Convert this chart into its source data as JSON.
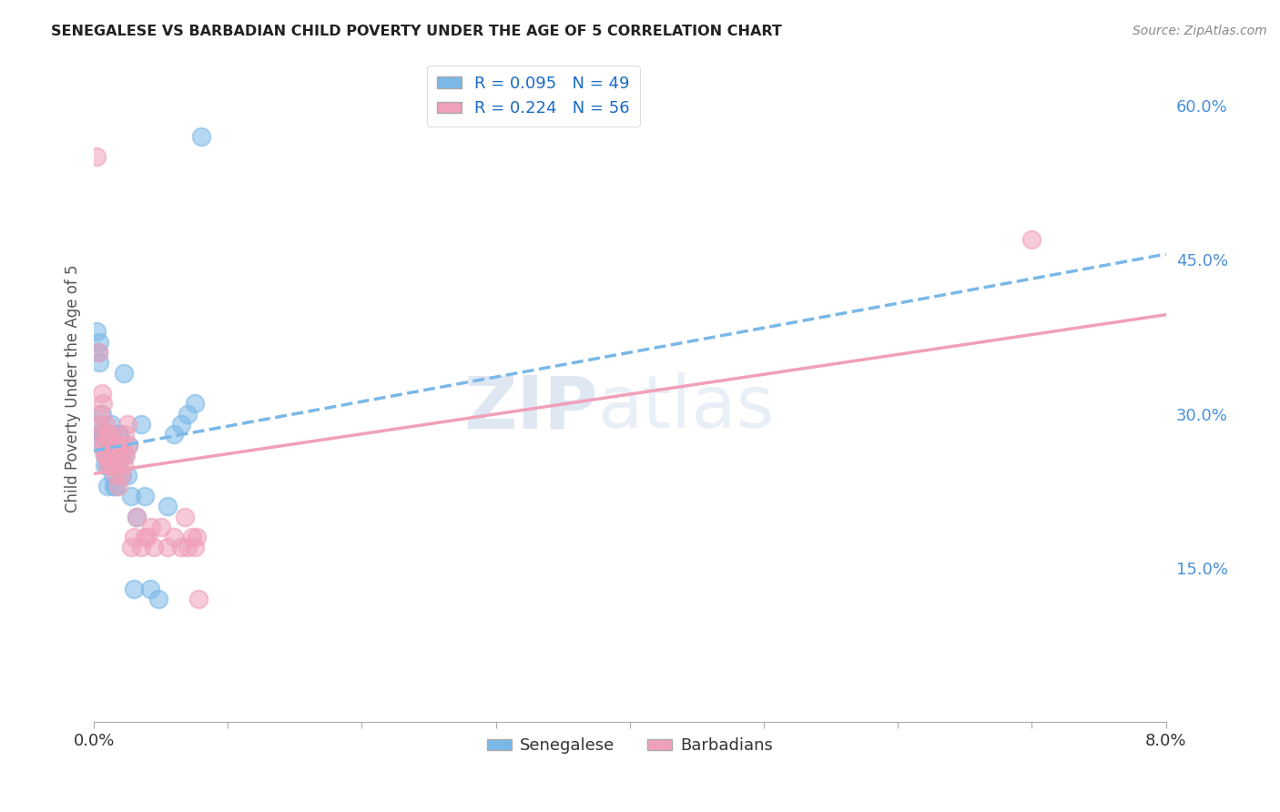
{
  "title": "SENEGALESE VS BARBADIAN CHILD POVERTY UNDER THE AGE OF 5 CORRELATION CHART",
  "source": "Source: ZipAtlas.com",
  "xlabel": "",
  "ylabel": "Child Poverty Under the Age of 5",
  "xlim": [
    0.0,
    0.08
  ],
  "ylim": [
    0.0,
    0.65
  ],
  "xtick_positions": [
    0.0,
    0.01,
    0.02,
    0.03,
    0.04,
    0.05,
    0.06,
    0.07,
    0.08
  ],
  "xticklabels": [
    "0.0%",
    "",
    "",
    "",
    "",
    "",
    "",
    "",
    "8.0%"
  ],
  "yticks_right": [
    0.15,
    0.3,
    0.45,
    0.6
  ],
  "ytick_right_labels": [
    "15.0%",
    "30.0%",
    "45.0%",
    "60.0%"
  ],
  "senegalese_color": "#7ab8e8",
  "barbadian_color": "#f0a0b8",
  "legend_label_1": "R = 0.095   N = 49",
  "legend_label_2": "R = 0.224   N = 56",
  "watermark_zip": "ZIP",
  "watermark_atlas": "atlas",
  "background_color": "#ffffff",
  "grid_color": "#d8d8d8",
  "senegalese_points_x": [
    0.0002,
    0.0003,
    0.0004,
    0.0004,
    0.0005,
    0.0005,
    0.0006,
    0.0006,
    0.0007,
    0.0007,
    0.0008,
    0.0008,
    0.0009,
    0.001,
    0.001,
    0.0011,
    0.0011,
    0.0012,
    0.0012,
    0.0013,
    0.0013,
    0.0014,
    0.0014,
    0.0015,
    0.0015,
    0.0016,
    0.0016,
    0.0017,
    0.0018,
    0.0019,
    0.002,
    0.0021,
    0.0022,
    0.0023,
    0.0025,
    0.0026,
    0.0028,
    0.003,
    0.0032,
    0.0035,
    0.0038,
    0.0042,
    0.0048,
    0.0055,
    0.006,
    0.0065,
    0.007,
    0.0075,
    0.008
  ],
  "senegalese_points_y": [
    0.38,
    0.36,
    0.37,
    0.35,
    0.29,
    0.28,
    0.3,
    0.28,
    0.28,
    0.27,
    0.26,
    0.25,
    0.26,
    0.25,
    0.23,
    0.28,
    0.26,
    0.27,
    0.25,
    0.29,
    0.27,
    0.26,
    0.24,
    0.26,
    0.23,
    0.25,
    0.23,
    0.27,
    0.28,
    0.28,
    0.26,
    0.24,
    0.34,
    0.26,
    0.24,
    0.27,
    0.22,
    0.13,
    0.2,
    0.29,
    0.22,
    0.13,
    0.12,
    0.21,
    0.28,
    0.29,
    0.3,
    0.31,
    0.57
  ],
  "barbadian_points_x": [
    0.0002,
    0.0003,
    0.0004,
    0.0005,
    0.0005,
    0.0006,
    0.0007,
    0.0007,
    0.0008,
    0.0008,
    0.0009,
    0.0009,
    0.001,
    0.001,
    0.0011,
    0.0011,
    0.0012,
    0.0012,
    0.0013,
    0.0013,
    0.0014,
    0.0015,
    0.0015,
    0.0016,
    0.0016,
    0.0017,
    0.0018,
    0.0018,
    0.0019,
    0.002,
    0.002,
    0.0021,
    0.0022,
    0.0023,
    0.0024,
    0.0025,
    0.0026,
    0.0028,
    0.003,
    0.0032,
    0.0035,
    0.0038,
    0.004,
    0.0043,
    0.0045,
    0.005,
    0.0055,
    0.006,
    0.0065,
    0.0068,
    0.007,
    0.0073,
    0.0075,
    0.0077,
    0.0078,
    0.07
  ],
  "barbadian_points_y": [
    0.55,
    0.36,
    0.27,
    0.3,
    0.29,
    0.32,
    0.31,
    0.28,
    0.27,
    0.26,
    0.29,
    0.26,
    0.28,
    0.25,
    0.28,
    0.26,
    0.27,
    0.25,
    0.28,
    0.26,
    0.27,
    0.27,
    0.25,
    0.26,
    0.24,
    0.27,
    0.25,
    0.23,
    0.27,
    0.26,
    0.24,
    0.27,
    0.25,
    0.28,
    0.26,
    0.29,
    0.27,
    0.17,
    0.18,
    0.2,
    0.17,
    0.18,
    0.18,
    0.19,
    0.17,
    0.19,
    0.17,
    0.18,
    0.17,
    0.2,
    0.17,
    0.18,
    0.17,
    0.18,
    0.12,
    0.47
  ]
}
